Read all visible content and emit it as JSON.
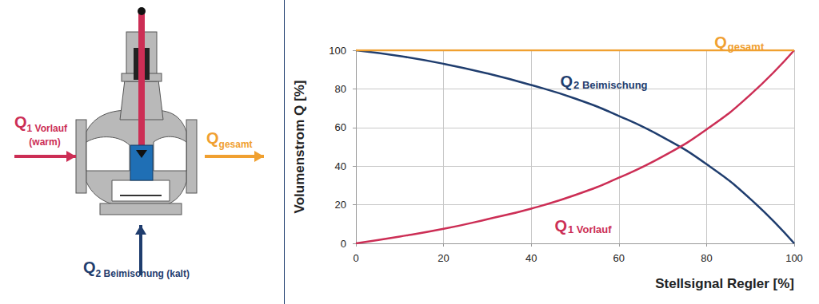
{
  "chart_data": {
    "type": "line",
    "x_label": "Stellsignal Regler [%]",
    "y_label": "Volumenstrom Q [%]",
    "x": [
      0,
      10,
      20,
      30,
      40,
      50,
      60,
      70,
      80,
      90,
      100
    ],
    "series": [
      {
        "name": "Q2 Beimischung",
        "color": "#1f3d6e",
        "values": [
          100,
          97,
          93,
          88,
          82,
          75,
          66,
          55,
          41,
          23,
          0
        ]
      },
      {
        "name": "Q1 Vorlauf",
        "color": "#cc2e55",
        "values": [
          0,
          3.5,
          7.5,
          12.5,
          18,
          25,
          34,
          45,
          59,
          77,
          100
        ]
      },
      {
        "name": "Qgesamt",
        "color": "#f0a030",
        "values": [
          100,
          100,
          100,
          100,
          100,
          100,
          100,
          100,
          100,
          100,
          100
        ]
      }
    ],
    "xlim": [
      0,
      100
    ],
    "xticks": [
      0,
      20,
      40,
      60,
      80,
      100
    ],
    "ylim": [
      0,
      100
    ],
    "yticks": [
      0,
      20,
      40,
      60,
      80,
      100
    ],
    "grid": true
  },
  "diagram": {
    "inlet": {
      "label": "Q1 Vorlauf",
      "note": "(warm)",
      "color": "#cc2e55"
    },
    "outlet": {
      "label": "Qgesamt",
      "color": "#f0a030"
    },
    "mix": {
      "label": "Q2 Beimischung (kalt)",
      "color": "#1f3d6e"
    }
  }
}
